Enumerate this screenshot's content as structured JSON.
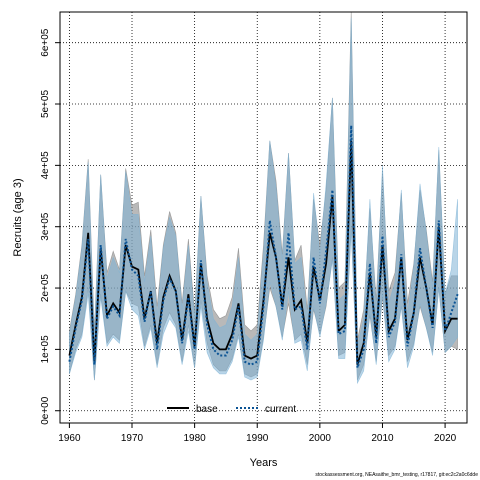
{
  "chart_data": {
    "type": "line",
    "xlabel": "Years",
    "ylabel": "Recruits (age 3)",
    "xlim": [
      1958.5,
      2023.5
    ],
    "ylim": [
      -20000,
      650000
    ],
    "x_ticks": [
      1960,
      1970,
      1980,
      1990,
      2000,
      2010,
      2020
    ],
    "y_ticks": [
      0,
      100000,
      200000,
      300000,
      400000,
      500000,
      600000
    ],
    "y_tick_labels": [
      "0e+00",
      "1e+05",
      "2e+05",
      "3e+05",
      "4e+05",
      "5e+05",
      "6e+05"
    ],
    "grid": true,
    "legend_position": "bottom",
    "x": [
      1960,
      1961,
      1962,
      1963,
      1964,
      1965,
      1966,
      1967,
      1968,
      1969,
      1970,
      1971,
      1972,
      1973,
      1974,
      1975,
      1976,
      1977,
      1978,
      1979,
      1980,
      1981,
      1982,
      1983,
      1984,
      1985,
      1986,
      1987,
      1988,
      1989,
      1990,
      1991,
      1992,
      1993,
      1994,
      1995,
      1996,
      1997,
      1998,
      1999,
      2000,
      2001,
      2002,
      2003,
      2004,
      2005,
      2006,
      2007,
      2008,
      2009,
      2010,
      2011,
      2012,
      2013,
      2014,
      2015,
      2016,
      2017,
      2018,
      2019,
      2020,
      2021,
      2022
    ],
    "series": [
      {
        "name": "base",
        "color": "#000000",
        "dash": "solid",
        "band_color": "#808080",
        "values": [
          90000,
          140000,
          185000,
          290000,
          80000,
          265000,
          155000,
          175000,
          160000,
          270000,
          235000,
          230000,
          150000,
          195000,
          110000,
          185000,
          220000,
          195000,
          115000,
          190000,
          105000,
          240000,
          150000,
          110000,
          100000,
          100000,
          125000,
          175000,
          90000,
          85000,
          90000,
          180000,
          290000,
          250000,
          170000,
          250000,
          165000,
          180000,
          110000,
          235000,
          180000,
          240000,
          350000,
          130000,
          140000,
          440000,
          75000,
          110000,
          225000,
          120000,
          270000,
          130000,
          150000,
          250000,
          115000,
          160000,
          250000,
          200000,
          140000,
          300000,
          130000,
          150000,
          150000
        ],
        "lower": [
          60000,
          100000,
          125000,
          200000,
          50000,
          190000,
          110000,
          125000,
          115000,
          195000,
          175000,
          170000,
          105000,
          140000,
          75000,
          135000,
          160000,
          140000,
          80000,
          140000,
          70000,
          180000,
          110000,
          75000,
          65000,
          65000,
          85000,
          125000,
          60000,
          55000,
          60000,
          120000,
          200000,
          170000,
          120000,
          175000,
          115000,
          125000,
          75000,
          165000,
          125000,
          170000,
          250000,
          90000,
          95000,
          300000,
          50000,
          75000,
          155000,
          80000,
          185000,
          90000,
          105000,
          170000,
          80000,
          110000,
          170000,
          135000,
          95000,
          200000,
          95000,
          105000,
          100000
        ],
        "upper": [
          130000,
          190000,
          270000,
          410000,
          130000,
          385000,
          225000,
          260000,
          230000,
          395000,
          335000,
          340000,
          220000,
          295000,
          170000,
          270000,
          325000,
          290000,
          175000,
          280000,
          160000,
          350000,
          220000,
          165000,
          150000,
          155000,
          185000,
          265000,
          140000,
          130000,
          140000,
          270000,
          440000,
          375000,
          255000,
          420000,
          245000,
          270000,
          165000,
          345000,
          270000,
          360000,
          510000,
          200000,
          210000,
          650000,
          115000,
          165000,
          330000,
          180000,
          390000,
          195000,
          225000,
          355000,
          175000,
          240000,
          360000,
          295000,
          210000,
          425000,
          190000,
          220000,
          220000
        ]
      },
      {
        "name": "current",
        "color": "#0b5394",
        "dash": "dotted",
        "band_color": "#7fb3d5",
        "values": [
          80000,
          135000,
          180000,
          280000,
          75000,
          270000,
          150000,
          170000,
          155000,
          280000,
          230000,
          220000,
          145000,
          195000,
          100000,
          180000,
          215000,
          195000,
          110000,
          185000,
          100000,
          245000,
          140000,
          100000,
          90000,
          90000,
          115000,
          170000,
          80000,
          75000,
          80000,
          170000,
          310000,
          250000,
          165000,
          290000,
          165000,
          170000,
          100000,
          250000,
          175000,
          260000,
          360000,
          125000,
          130000,
          465000,
          70000,
          100000,
          240000,
          110000,
          285000,
          120000,
          145000,
          255000,
          105000,
          160000,
          265000,
          200000,
          135000,
          310000,
          130000,
          160000,
          190000
        ],
        "lower": [
          60000,
          95000,
          120000,
          190000,
          50000,
          185000,
          105000,
          120000,
          110000,
          195000,
          165000,
          155000,
          100000,
          135000,
          70000,
          125000,
          150000,
          135000,
          75000,
          130000,
          70000,
          170000,
          95000,
          70000,
          60000,
          60000,
          80000,
          120000,
          55000,
          50000,
          55000,
          115000,
          210000,
          170000,
          115000,
          195000,
          110000,
          115000,
          65000,
          170000,
          120000,
          175000,
          245000,
          85000,
          85000,
          295000,
          45000,
          65000,
          160000,
          75000,
          190000,
          80000,
          100000,
          170000,
          70000,
          105000,
          175000,
          135000,
          90000,
          200000,
          95000,
          105000,
          120000
        ],
        "upper": [
          125000,
          185000,
          265000,
          405000,
          120000,
          385000,
          215000,
          250000,
          225000,
          390000,
          320000,
          320000,
          210000,
          285000,
          155000,
          265000,
          315000,
          285000,
          165000,
          270000,
          150000,
          350000,
          210000,
          150000,
          135000,
          140000,
          170000,
          250000,
          125000,
          115000,
          125000,
          255000,
          440000,
          365000,
          245000,
          420000,
          240000,
          250000,
          150000,
          355000,
          255000,
          370000,
          510000,
          180000,
          190000,
          640000,
          105000,
          150000,
          345000,
          160000,
          400000,
          175000,
          210000,
          360000,
          155000,
          235000,
          370000,
          290000,
          200000,
          430000,
          190000,
          230000,
          345000
        ]
      }
    ],
    "footnote": "stockassessment.org, NEAsaithe_bmr_testing, r17817, git:ec2c2a0c6dde"
  }
}
